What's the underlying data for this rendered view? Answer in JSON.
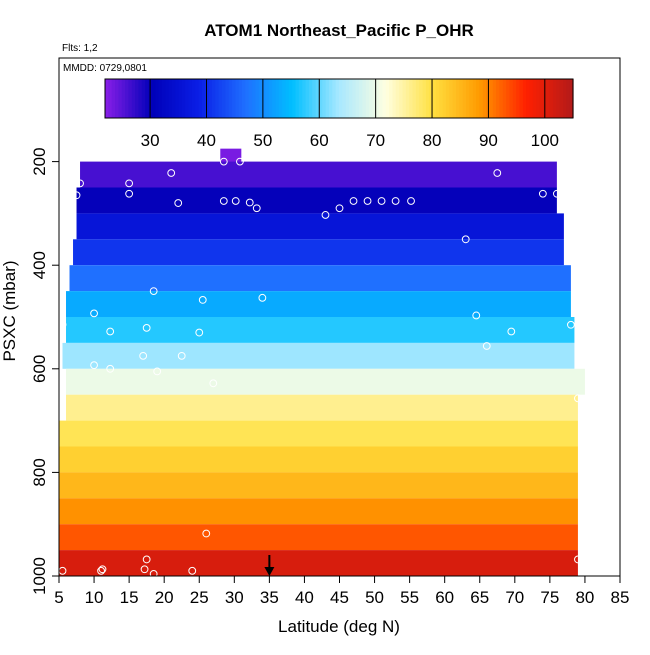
{
  "chart_data": {
    "type": "heatmap",
    "title": "ATOM1 Northeast_Pacific P_OHR",
    "flights_note": "Flts: 1,2",
    "date_note": "MMDD: 0729,0801",
    "xlabel": "Latitude (deg N)",
    "ylabel": "PSXC (mbar)",
    "xlim": [
      5,
      85
    ],
    "ylim": [
      1000,
      0
    ],
    "x_ticks": [
      5,
      10,
      15,
      20,
      25,
      30,
      35,
      40,
      45,
      50,
      55,
      60,
      65,
      70,
      75,
      80,
      85
    ],
    "y_ticks": [
      200,
      400,
      600,
      800,
      1000
    ],
    "colorbar": {
      "range": [
        22,
        105
      ],
      "ticks": [
        30,
        40,
        50,
        60,
        70,
        80,
        90,
        100
      ],
      "colors": [
        "#8a1fe8",
        "#0000b8",
        "#0a1ee6",
        "#1f6fff",
        "#00bfff",
        "#a8e8ff",
        "#ffffe0",
        "#ffe040",
        "#ff9a00",
        "#ff2000",
        "#b21a1a"
      ]
    },
    "layers": [
      {
        "p": 200,
        "x": [
          28,
          31
        ],
        "value": 23
      },
      {
        "p": 225,
        "x": [
          8,
          76
        ],
        "value": 26
      },
      {
        "p": 275,
        "x": [
          7.5,
          76
        ],
        "value": 30
      },
      {
        "p": 325,
        "x": [
          7.5,
          77
        ],
        "value": 36
      },
      {
        "p": 375,
        "x": [
          7,
          77
        ],
        "value": 41
      },
      {
        "p": 425,
        "x": [
          6.5,
          78
        ],
        "value": 47
      },
      {
        "p": 475,
        "x": [
          6,
          78
        ],
        "value": 53
      },
      {
        "p": 525,
        "x": [
          6,
          78.5
        ],
        "value": 57
      },
      {
        "p": 575,
        "x": [
          5.5,
          78.5
        ],
        "value": 63
      },
      {
        "p": 625,
        "x": [
          6,
          80
        ],
        "value": 70
      },
      {
        "p": 675,
        "x": [
          6,
          79
        ],
        "value": 76
      },
      {
        "p": 725,
        "x": [
          5,
          79
        ],
        "value": 79
      },
      {
        "p": 775,
        "x": [
          5,
          79
        ],
        "value": 82
      },
      {
        "p": 825,
        "x": [
          5,
          79
        ],
        "value": 85
      },
      {
        "p": 875,
        "x": [
          5,
          79
        ],
        "value": 89
      },
      {
        "p": 925,
        "x": [
          5,
          79
        ],
        "value": 93
      },
      {
        "p": 975,
        "x": [
          5,
          79
        ],
        "value": 101
      }
    ],
    "observation_points": [
      [
        28.5,
        200
      ],
      [
        30.8,
        200
      ],
      [
        8,
        242
      ],
      [
        15,
        242
      ],
      [
        21,
        222
      ],
      [
        67.5,
        222
      ],
      [
        7.5,
        265
      ],
      [
        15,
        262
      ],
      [
        22,
        280
      ],
      [
        28.5,
        276
      ],
      [
        30.2,
        276
      ],
      [
        32.2,
        279
      ],
      [
        33.2,
        290
      ],
      [
        43,
        303
      ],
      [
        45,
        290
      ],
      [
        47,
        276
      ],
      [
        49,
        276
      ],
      [
        51,
        276
      ],
      [
        53,
        276
      ],
      [
        55.2,
        276
      ],
      [
        74,
        262
      ],
      [
        76,
        262
      ],
      [
        63,
        350
      ],
      [
        18.5,
        450
      ],
      [
        25.5,
        467
      ],
      [
        34,
        463
      ],
      [
        10,
        493
      ],
      [
        64.5,
        497
      ],
      [
        5.5,
        515
      ],
      [
        12.3,
        528
      ],
      [
        17.5,
        521
      ],
      [
        25,
        530
      ],
      [
        69.5,
        528
      ],
      [
        78,
        515
      ],
      [
        66,
        556
      ],
      [
        22.5,
        575
      ],
      [
        17,
        575
      ],
      [
        10,
        593
      ],
      [
        12.3,
        600
      ],
      [
        19,
        605
      ],
      [
        27,
        628
      ],
      [
        79,
        657
      ],
      [
        26,
        918
      ],
      [
        17.5,
        968
      ],
      [
        5.5,
        990
      ],
      [
        11,
        990
      ],
      [
        11.2,
        987
      ],
      [
        17.2,
        987
      ],
      [
        18.5,
        996
      ],
      [
        24,
        990
      ],
      [
        79,
        968
      ]
    ],
    "marker": {
      "x": 35,
      "p": 1000
    }
  }
}
